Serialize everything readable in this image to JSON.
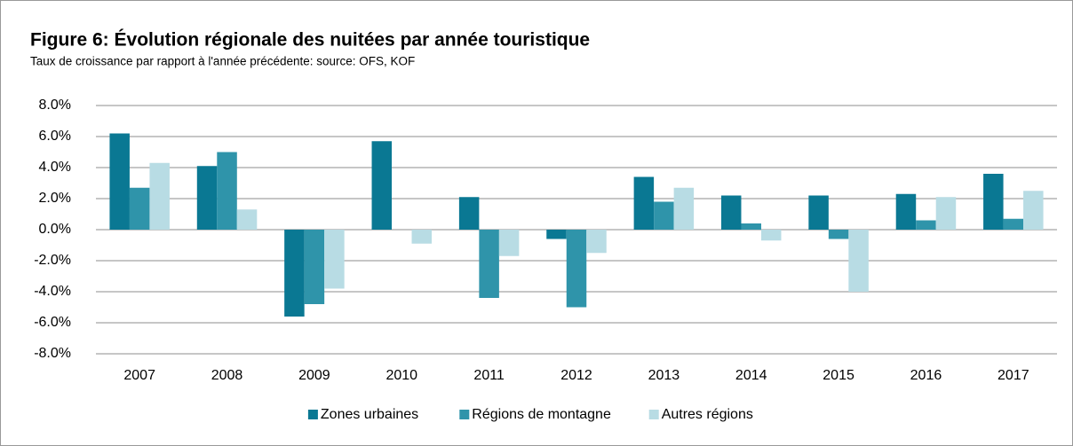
{
  "chart_data": {
    "type": "bar",
    "title": "Figure 6: Évolution régionale des nuitées par année touristique",
    "subtitle": "Taux de croissance par rapport à l'année précédente: source: OFS, KOF",
    "categories": [
      "2007",
      "2008",
      "2009",
      "2010",
      "2011",
      "2012",
      "2013",
      "2014",
      "2015",
      "2016",
      "2017"
    ],
    "series": [
      {
        "name": "Zones urbaines",
        "color": "#0a7893",
        "values": [
          6.2,
          4.1,
          -5.6,
          5.7,
          2.1,
          -0.6,
          3.4,
          2.2,
          2.2,
          2.3,
          3.6
        ]
      },
      {
        "name": "Régions de montagne",
        "color": "#2f94aa",
        "values": [
          2.7,
          5.0,
          -4.8,
          0.0,
          -4.4,
          -5.0,
          1.8,
          0.4,
          -0.6,
          0.6,
          0.7
        ]
      },
      {
        "name": "Autres régions",
        "color": "#b8dce4",
        "values": [
          4.3,
          1.3,
          -3.8,
          -0.9,
          -1.7,
          -1.5,
          2.7,
          -0.7,
          -4.0,
          2.1,
          2.5
        ]
      }
    ],
    "ylim": [
      -8,
      8
    ],
    "yticks": [
      {
        "value": 8,
        "label": "8.0%"
      },
      {
        "value": 6,
        "label": "6.0%"
      },
      {
        "value": 4,
        "label": "4.0%"
      },
      {
        "value": 2,
        "label": "2.0%"
      },
      {
        "value": 0,
        "label": "0.0%"
      },
      {
        "value": -2,
        "label": "-2.0%"
      },
      {
        "value": -4,
        "label": "-4.0%"
      },
      {
        "value": -6,
        "label": "-6.0%"
      },
      {
        "value": -8,
        "label": "-8.0%"
      }
    ],
    "grid": true,
    "legend": "bottom"
  }
}
